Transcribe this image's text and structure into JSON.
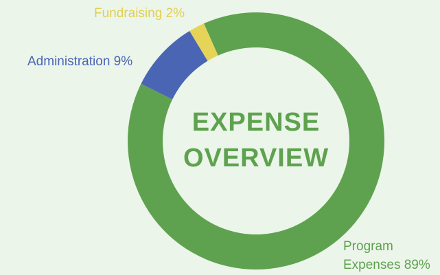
{
  "chart_data": {
    "type": "donut",
    "title": "EXPENSE OVERVIEW",
    "categories": [
      "Program Expenses",
      "Administration",
      "Fundraising"
    ],
    "values": [
      89,
      9,
      2
    ],
    "value_labels": [
      "89%",
      "9%",
      "2%"
    ],
    "colors": [
      "#5ea24f",
      "#4a65b4",
      "#e6d458"
    ]
  }
}
